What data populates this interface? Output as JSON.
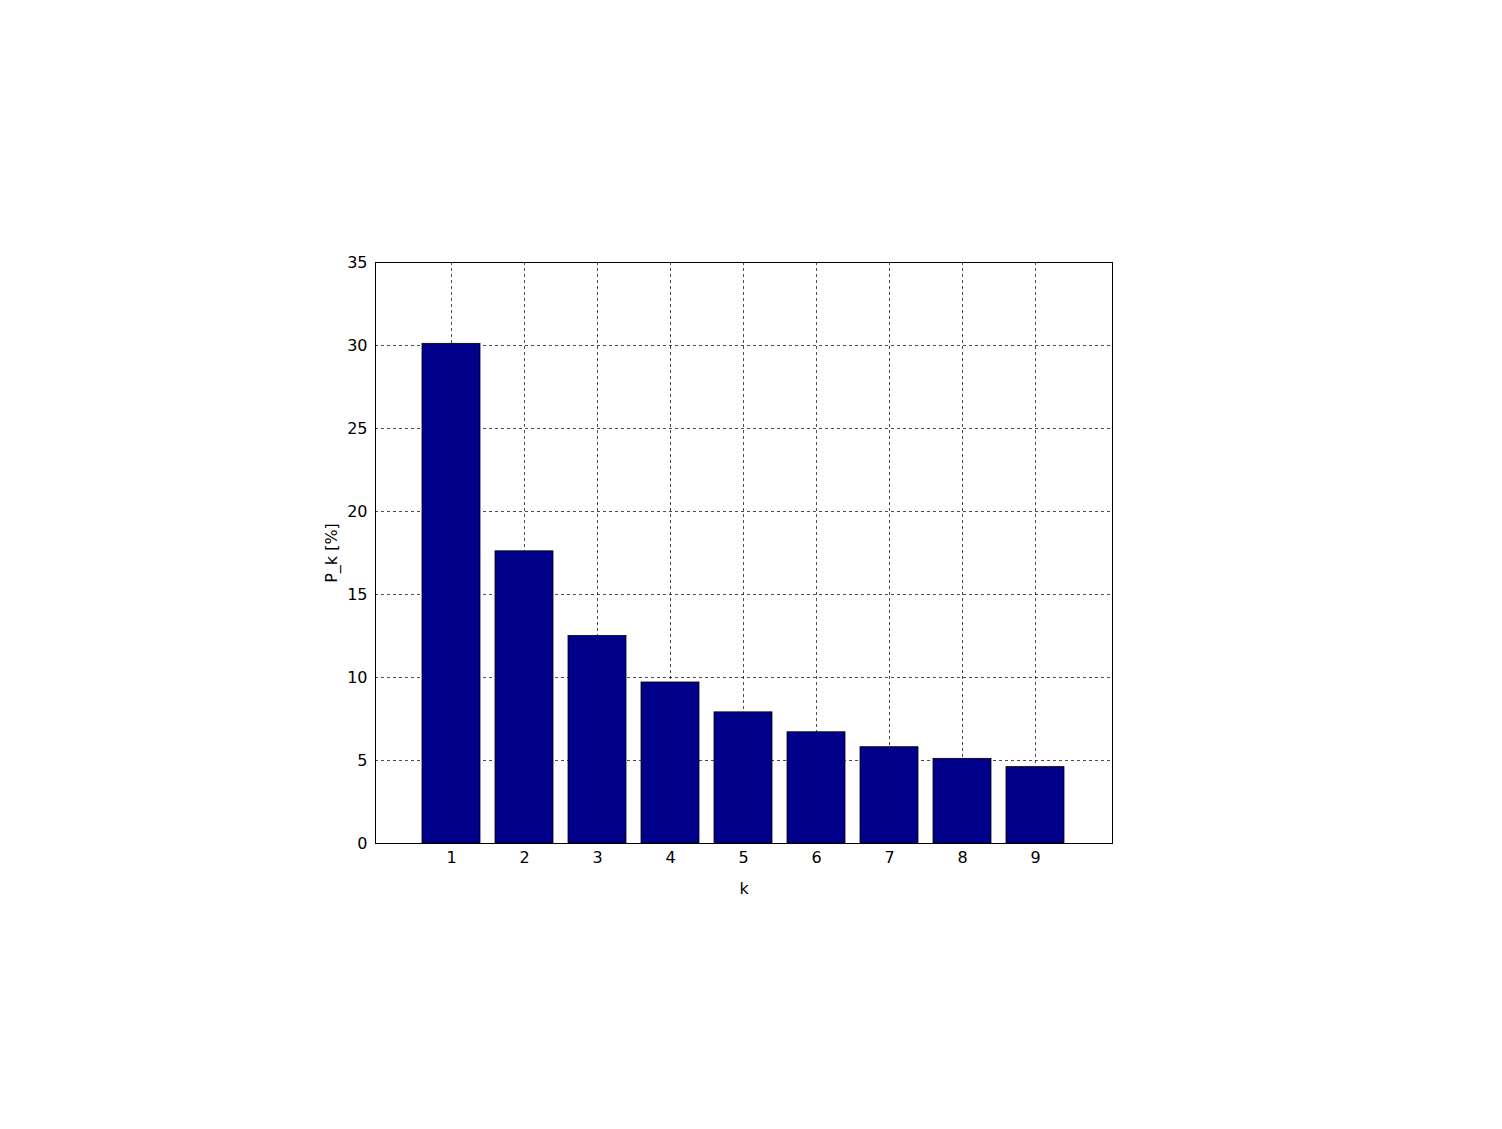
{
  "chart_data": {
    "type": "bar",
    "x_label": "k",
    "y_label": "P_k [%]",
    "categories": [
      "1",
      "2",
      "3",
      "4",
      "5",
      "6",
      "7",
      "8",
      "9"
    ],
    "values": [
      30.1,
      17.6,
      12.5,
      9.7,
      7.9,
      6.7,
      5.8,
      5.1,
      4.6
    ],
    "color": "#00008b",
    "ylim": [
      0,
      35
    ],
    "yticks": [
      0,
      5,
      10,
      15,
      20,
      25,
      30,
      35
    ],
    "grid": true
  }
}
